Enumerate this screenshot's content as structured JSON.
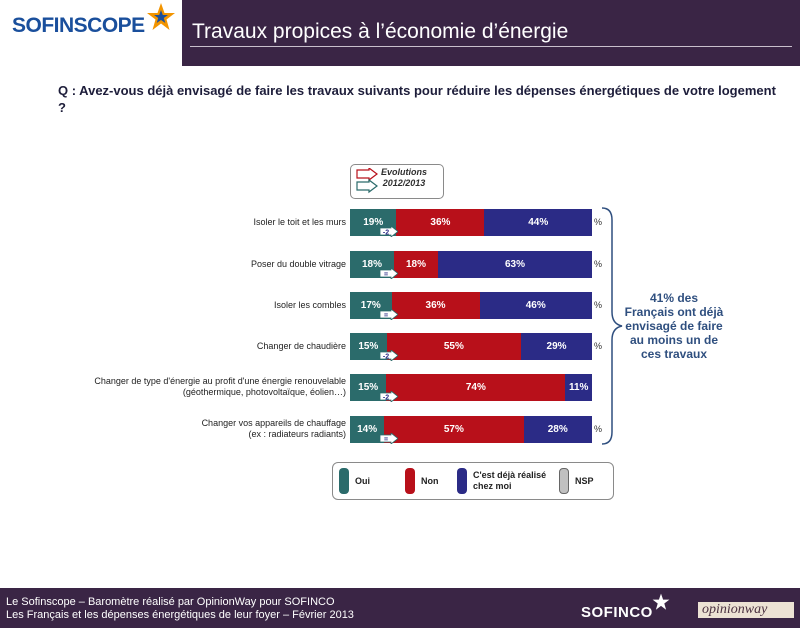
{
  "header": {
    "logo_text": "SOFINSCOPE",
    "title": "Travaux propices à l’économie d’énergie"
  },
  "question": "Q : Avez-vous déjà envisagé de faire les travaux suivants pour réduire les dépenses énergétiques de votre logement ?",
  "evolutions_box": {
    "line1": "Evolutions",
    "line2": "2012/2013"
  },
  "callout": "41% des Français ont déjà envisagé de faire au moins un de ces travaux",
  "colors": {
    "oui": "#2b6b6b",
    "non": "#b8101a",
    "deja": "#2b2b86",
    "nsp": "#c0c0c0",
    "title_bar": "#3a2545"
  },
  "chart_data": {
    "type": "bar",
    "orientation": "horizontal",
    "stacked": true,
    "unit": "%",
    "categories": [
      "Isoler le toit et les murs",
      "Poser du double vitrage",
      "Isoler les combles",
      "Changer de chaudière",
      "Changer de type d'énergie au profit d'une énergie renouvelable (géothermique, photovoltaïque, éolien…)",
      "Changer vos appareils de chauffage (ex : radiateurs radiants)"
    ],
    "category_lines": [
      [
        "Isoler le toit et les murs"
      ],
      [
        "Poser du double vitrage"
      ],
      [
        "Isoler les combles"
      ],
      [
        "Changer de chaudière"
      ],
      [
        "Changer de type d'énergie au profit d'une énergie renouvelable",
        "(géothermique, photovoltaïque, éolien…)"
      ],
      [
        "Changer vos appareils de chauffage",
        "(ex : radiateurs radiants)"
      ]
    ],
    "series": [
      {
        "name": "Oui",
        "values": [
          19,
          18,
          17,
          15,
          15,
          14
        ],
        "labels": [
          "19%",
          "18%",
          "17%",
          "15%",
          "15%",
          "14%"
        ]
      },
      {
        "name": "Non",
        "values": [
          36,
          18,
          36,
          55,
          74,
          57
        ],
        "labels": [
          "36%",
          "18%",
          "36%",
          "55%",
          "74%",
          "57%"
        ]
      },
      {
        "name": "C'est déjà réalisé chez moi",
        "values": [
          44,
          63,
          46,
          29,
          11,
          28
        ],
        "labels": [
          "44%",
          "63%",
          "46%",
          "29%",
          "11%",
          "28%"
        ]
      },
      {
        "name": "NSP",
        "values": [
          1,
          1,
          1,
          1,
          0,
          1
        ],
        "labels": [
          "%",
          "%",
          "%",
          "%",
          "",
          "%"
        ]
      }
    ],
    "evolutions": [
      "-2",
      "=",
      "=",
      "-2",
      "-2",
      "="
    ]
  },
  "legend": {
    "oui": "Oui",
    "non": "Non",
    "deja_line1": "C'est déjà réalisé",
    "deja_line2": "chez moi",
    "nsp": "NSP"
  },
  "footer": {
    "line1": "Le Sofinscope – Baromètre réalisé par OpinionWay pour SOFINCO",
    "line2": "Les Français et les dépenses énergétiques de leur foyer – Février 2013",
    "logo": "SOFINCO",
    "partner": "opinionway"
  }
}
